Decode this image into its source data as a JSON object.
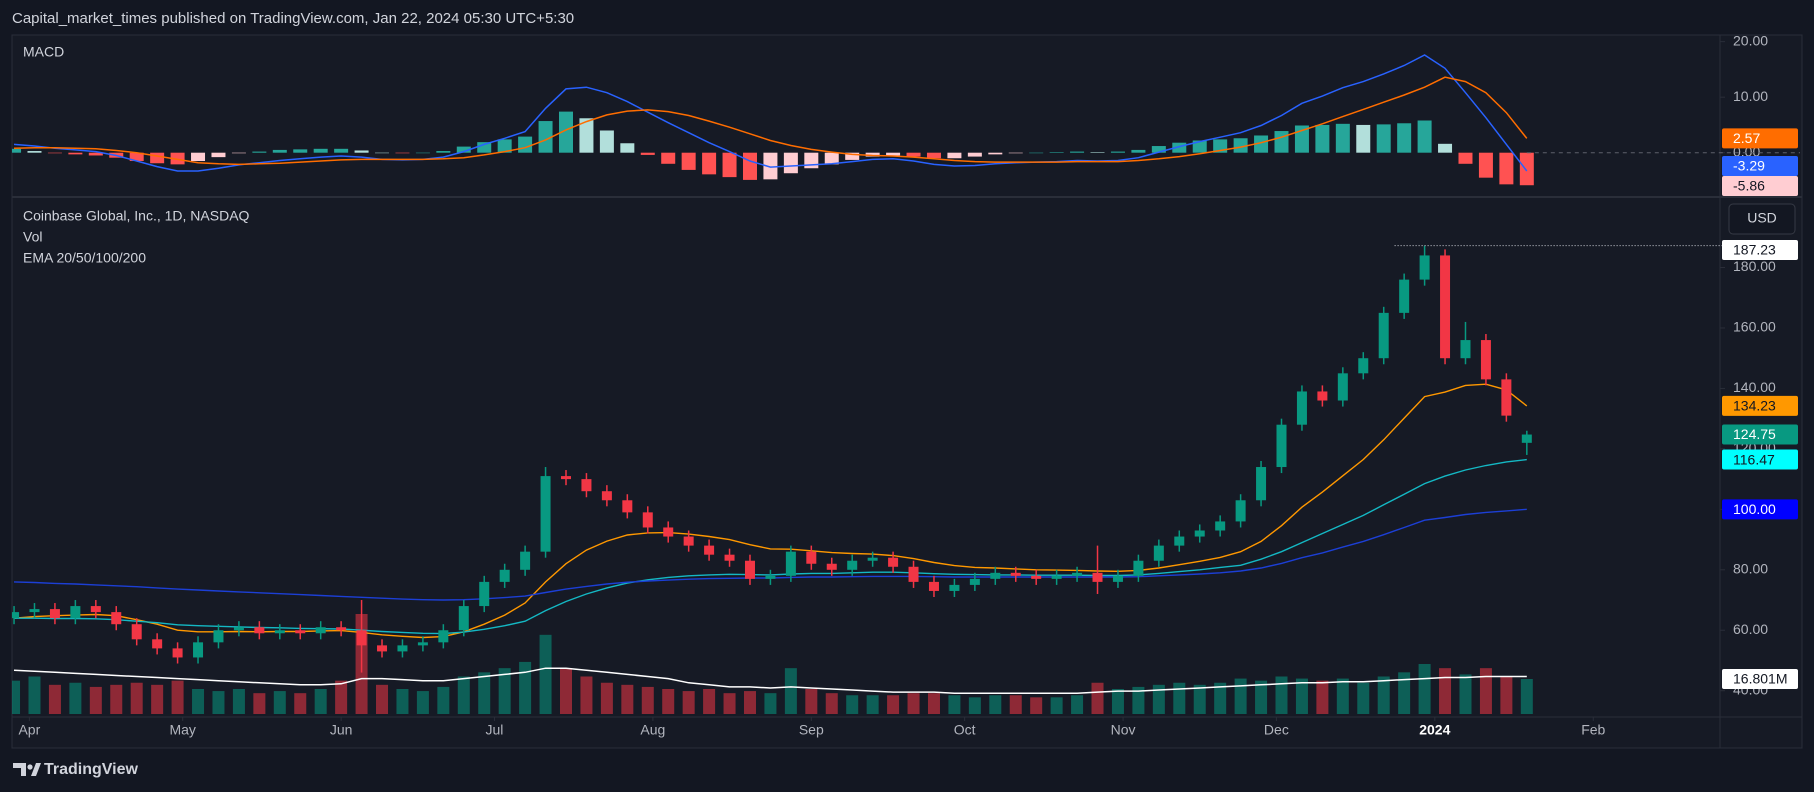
{
  "header": {
    "text": "Capital_market_times published on TradingView.com, Jan 22, 2024 05:30 UTC+5:30"
  },
  "footer": {
    "brand": "TradingView"
  },
  "chart_data": [
    {
      "type": "macd",
      "title": "MACD",
      "ylim": [
        -7.8,
        21.2
      ],
      "yticks": [
        {
          "value": 20,
          "label": "20.00"
        },
        {
          "value": 10,
          "label": "10.00"
        },
        {
          "value": 0,
          "label": "0.00"
        }
      ],
      "series": [
        {
          "color": "#2962ff",
          "last_label": "-3.29",
          "values": [
            1.5,
            1.2,
            0.8,
            0.5,
            0.2,
            -0.5,
            -1.5,
            -2.5,
            -3.3,
            -3.3,
            -2.8,
            -2.2,
            -1.8,
            -1.4,
            -1.1,
            -0.8,
            -0.6,
            -0.8,
            -1.2,
            -1.3,
            -1.2,
            -0.8,
            0.2,
            1.5,
            2.6,
            3.8,
            8,
            11.5,
            11.8,
            10.8,
            9.2,
            7.3,
            5.4,
            3.6,
            1.8,
            0.2,
            -1.5,
            -2.6,
            -2.4,
            -2.2,
            -2,
            -1.6,
            -1.2,
            -1.1,
            -1.5,
            -2.1,
            -2.4,
            -2.3,
            -2,
            -1.8,
            -1.7,
            -1.6,
            -1.4,
            -1.5,
            -1.4,
            -0.9,
            0.1,
            1.1,
            2,
            2.8,
            3.6,
            4.9,
            6.7,
            8.9,
            10.2,
            11.7,
            12.8,
            14.2,
            15.7,
            17.6,
            15.2,
            10.8,
            6.3,
            1.5,
            -3.29
          ]
        },
        {
          "color": "#ff6d00",
          "last_label": "2.57",
          "values": [
            0.8,
            0.9,
            0.9,
            0.8,
            0.7,
            0.4,
            0,
            -0.6,
            -1.2,
            -1.8,
            -2,
            -2.1,
            -2,
            -1.9,
            -1.7,
            -1.5,
            -1.3,
            -1.2,
            -1.2,
            -1.2,
            -1.2,
            -1.1,
            -0.9,
            -0.4,
            0.2,
            0.9,
            2.3,
            4.1,
            5.6,
            6.8,
            7.5,
            7.7,
            7.4,
            6.7,
            5.7,
            4.6,
            3.4,
            2.2,
            1.3,
            0.6,
            0.1,
            -0.3,
            -0.5,
            -0.6,
            -0.8,
            -1.1,
            -1.4,
            -1.6,
            -1.7,
            -1.7,
            -1.7,
            -1.7,
            -1.6,
            -1.6,
            -1.6,
            -1.4,
            -1.1,
            -0.7,
            -0.2,
            0.4,
            1,
            1.8,
            2.8,
            4,
            5.2,
            6.5,
            7.8,
            9.1,
            10.4,
            11.8,
            13.6,
            12.8,
            10.8,
            7.2,
            2.57
          ]
        }
      ],
      "histogram": {
        "last_label": "-5.86",
        "label_color": "#ffcdd2",
        "colors": {
          "grow_above": "#26a69a",
          "fall_above": "#b2dfdb",
          "grow_below": "#ffcdd2",
          "fall_below": "#ff5252"
        },
        "values": [
          0.7,
          0.3,
          -0.1,
          -0.3,
          -0.5,
          -0.9,
          -1.5,
          -1.9,
          -2.1,
          -1.5,
          -0.8,
          -0.1,
          0.2,
          0.5,
          0.6,
          0.7,
          0.7,
          0.4,
          0,
          -0.1,
          0,
          0.3,
          1.1,
          1.9,
          2.4,
          2.9,
          5.7,
          7.4,
          6.2,
          4,
          1.7,
          -0.4,
          -2,
          -3.1,
          -3.9,
          -4.4,
          -4.9,
          -4.8,
          -3.7,
          -2.8,
          -2.1,
          -1.3,
          -0.7,
          -0.5,
          -0.7,
          -1,
          -1,
          -0.7,
          -0.3,
          -0.1,
          0,
          0.1,
          0.2,
          0.1,
          0.2,
          0.5,
          1.2,
          1.8,
          2.2,
          2.4,
          2.6,
          3.1,
          3.9,
          4.9,
          5,
          5.2,
          5,
          5.1,
          5.3,
          5.8,
          1.6,
          -2,
          -4.5,
          -5.7,
          -5.86
        ]
      }
    },
    {
      "type": "candlestick",
      "title": "Coinbase Global, Inc., 1D, NASDAQ",
      "currency": "USD",
      "up_color": "#089981",
      "down_color": "#f23645",
      "close_label": "124.75",
      "high_label": "187.23",
      "xlim": [
        -3.4,
        330.8
      ],
      "xticks": [
        {
          "value": 0,
          "label": "Apr"
        },
        {
          "value": 30,
          "label": "May"
        },
        {
          "value": 61,
          "label": "Jun"
        },
        {
          "value": 91,
          "label": "Jul"
        },
        {
          "value": 122,
          "label": "Aug"
        },
        {
          "value": 153,
          "label": "Sep"
        },
        {
          "value": 183,
          "label": "Oct"
        },
        {
          "value": 214,
          "label": "Nov"
        },
        {
          "value": 244,
          "label": "Dec"
        },
        {
          "value": 275,
          "label": "2024"
        },
        {
          "value": 306,
          "label": "Feb"
        }
      ],
      "ylim": [
        31.3,
        203
      ],
      "yticks": [
        {
          "value": 40,
          "label": "40.00"
        },
        {
          "value": 60,
          "label": "60.00"
        },
        {
          "value": 80,
          "label": "80.00"
        },
        {
          "value": 100,
          "label": "100.00"
        },
        {
          "value": 120,
          "label": "120.00"
        },
        {
          "value": 140,
          "label": "140.00"
        },
        {
          "value": 160,
          "label": "160.00"
        },
        {
          "value": 180,
          "label": "180.00"
        }
      ],
      "x": [
        -3,
        1,
        5,
        9,
        13,
        17,
        21,
        25,
        29,
        33,
        37,
        41,
        45,
        49,
        53,
        57,
        61,
        65,
        69,
        73,
        77,
        81,
        85,
        89,
        93,
        97,
        101,
        105,
        109,
        113,
        117,
        121,
        125,
        129,
        133,
        137,
        141,
        145,
        149,
        153,
        157,
        161,
        165,
        169,
        173,
        177,
        181,
        185,
        189,
        193,
        197,
        201,
        205,
        209,
        213,
        217,
        221,
        225,
        229,
        233,
        237,
        241,
        245,
        249,
        253,
        257,
        261,
        265,
        269,
        273,
        277,
        281,
        285,
        289,
        293
      ],
      "open": [
        64,
        66,
        67,
        64,
        68,
        66,
        62,
        57,
        54,
        51,
        56,
        60,
        61,
        59,
        60,
        59,
        61,
        60,
        55,
        53,
        55,
        56,
        60,
        68,
        76,
        80,
        86,
        111,
        110,
        106,
        103,
        99,
        94,
        91,
        88,
        85,
        83,
        77,
        78,
        86,
        82,
        80,
        83,
        84,
        81,
        76,
        73,
        75,
        77,
        79,
        78,
        77,
        78,
        79,
        76,
        78,
        83,
        88,
        91,
        93,
        96,
        103,
        114,
        128,
        139,
        136,
        145,
        150,
        165,
        176,
        184,
        150,
        156,
        143,
        122
      ],
      "high": [
        68,
        69,
        69,
        70,
        70,
        68,
        64,
        59,
        56,
        58,
        62,
        63,
        63,
        62,
        62,
        63,
        63,
        70,
        57,
        57,
        58,
        62,
        70,
        78,
        82,
        88,
        114,
        113,
        112,
        108,
        105,
        101,
        96,
        93,
        90,
        87,
        85,
        80,
        88,
        88,
        84,
        85,
        86,
        86,
        83,
        78,
        77,
        79,
        81,
        81,
        80,
        80,
        81,
        88,
        80,
        85,
        90,
        93,
        95,
        98,
        105,
        116,
        130,
        141,
        141,
        147,
        152,
        167,
        178,
        187.23,
        186,
        162,
        158,
        145,
        126
      ],
      "low": [
        62,
        64,
        62,
        62,
        64,
        60,
        55,
        52,
        49,
        49,
        54,
        58,
        57,
        57,
        57,
        57,
        58,
        46,
        51,
        51,
        53,
        54,
        58,
        66,
        74,
        78,
        84,
        108,
        104,
        101,
        97,
        92,
        89,
        86,
        83,
        81,
        75,
        75,
        76,
        80,
        78,
        78,
        81,
        79,
        74,
        71,
        71,
        73,
        75,
        76,
        75,
        75,
        76,
        72,
        74,
        76,
        81,
        86,
        89,
        91,
        94,
        101,
        112,
        126,
        134,
        134,
        143,
        148,
        163,
        174,
        148,
        148,
        141,
        129,
        118
      ],
      "close": [
        66,
        67,
        64,
        68,
        66,
        62,
        57,
        54,
        51,
        56,
        60,
        61,
        59,
        60,
        59,
        61,
        60,
        55,
        53,
        55,
        56,
        60,
        68,
        76,
        80,
        86,
        111,
        110,
        106,
        103,
        99,
        94,
        91,
        88,
        85,
        83,
        77,
        78,
        86,
        82,
        80,
        83,
        84,
        81,
        76,
        73,
        75,
        77,
        79,
        78,
        77,
        78,
        79,
        76,
        78,
        83,
        88,
        91,
        93,
        96,
        103,
        114,
        128,
        139,
        136,
        145,
        150,
        165,
        176,
        184,
        150,
        156,
        143,
        131,
        124.75
      ],
      "volume": {
        "name": "Vol",
        "ylim": [
          0,
          60
        ],
        "last_label": "16.801M",
        "ma_color": "#ffffff",
        "values": [
          16,
          18,
          14,
          15,
          13,
          14,
          15,
          14,
          16,
          12,
          11,
          12,
          10,
          11,
          10,
          12,
          16,
          48,
          14,
          12,
          11,
          13,
          18,
          20,
          22,
          25,
          38,
          22,
          18,
          15,
          14,
          13,
          12,
          11,
          12,
          10,
          11,
          10,
          22,
          12,
          10,
          9,
          9,
          9,
          10,
          10,
          9,
          8,
          9,
          9,
          8,
          8,
          9,
          15,
          12,
          13,
          14,
          15,
          14,
          15,
          17,
          16,
          18,
          17,
          16,
          17,
          15,
          18,
          20,
          24,
          22,
          19,
          22,
          18,
          16.801
        ],
        "ma": [
          21,
          20.5,
          20,
          19.5,
          19,
          18.5,
          18,
          17.5,
          17,
          16.5,
          16,
          15.5,
          15,
          14.5,
          14,
          14,
          14.5,
          17,
          17,
          16.5,
          16,
          16,
          17,
          18,
          19,
          20,
          22,
          22,
          21,
          20,
          19,
          18,
          17,
          15,
          14,
          13,
          13,
          12.5,
          13,
          12.5,
          12,
          11.5,
          11,
          10.5,
          10.5,
          10.5,
          10,
          10,
          10,
          10,
          10,
          10,
          10,
          10.5,
          11,
          11,
          11.5,
          12,
          12.5,
          13,
          13.5,
          14,
          14.5,
          15,
          15,
          15.5,
          15.5,
          16,
          16.5,
          17,
          17.5,
          17.5,
          18,
          18,
          18
        ]
      },
      "ema": {
        "name": "EMA 20/50/100/200",
        "lines": [
          {
            "color": "#ff9800",
            "label_color": "#ff9800",
            "last_label": "134.23",
            "values": [
              64,
              64.5,
              64.8,
              65,
              65.2,
              64.8,
              63.5,
              62,
              60,
              59.5,
              59.5,
              59.6,
              59.5,
              59.6,
              59.6,
              59.8,
              59.9,
              59.3,
              58.5,
              58,
              57.6,
              57.9,
              59.5,
              62,
              65,
              69,
              76,
              82,
              86.5,
              89.5,
              91.5,
              92.2,
              92.3,
              91.8,
              91,
              90,
              88.3,
              86.9,
              86.8,
              86.3,
              85.7,
              85.4,
              85.2,
              84.7,
              83.7,
              82.4,
              81.4,
              80.8,
              80.6,
              80.3,
              80,
              79.9,
              79.8,
              79.6,
              79.5,
              79.8,
              80.6,
              81.7,
              82.8,
              84.1,
              86,
              89.4,
              94.6,
              100.7,
              105.7,
              111.1,
              116.5,
              123,
              130.2,
              137.3,
              138.8,
              141,
              141.4,
              139.5,
              134.23
            ]
          },
          {
            "color": "#14b8c4",
            "label_color": "#00ffff",
            "last_label": "116.47",
            "values": [
              64,
              64,
              63.9,
              63.9,
              63.8,
              63.5,
              63,
              62.5,
              61.8,
              61.5,
              61.3,
              61.1,
              60.9,
              60.8,
              60.6,
              60.5,
              60.4,
              60,
              59.6,
              59.3,
              59,
              58.9,
              59.4,
              60.3,
              61.5,
              63,
              66.5,
              69.5,
              72,
              74,
              75.6,
              76.7,
              77.5,
              78,
              78.3,
              78.5,
              78.4,
              78.3,
              78.6,
              78.8,
              78.8,
              79,
              79.2,
              79.2,
              79,
              78.7,
              78.5,
              78.4,
              78.3,
              78.3,
              78.2,
              78.2,
              78.2,
              78.1,
              78.1,
              78.3,
              78.8,
              79.4,
              80,
              80.8,
              81.5,
              83.5,
              86,
              89,
              92,
              95,
              98,
              101.5,
              105,
              108.5,
              111,
              113,
              114.5,
              115.7,
              116.47
            ]
          },
          {
            "color": "#1c3fd6",
            "label_color": "#0000ff",
            "last_label": "100.00",
            "values": [
              76,
              75.8,
              75.5,
              75.3,
              75,
              74.7,
              74.4,
              74,
              73.6,
              73.3,
              73,
              72.7,
              72.4,
              72.1,
              71.8,
              71.5,
              71.2,
              70.9,
              70.6,
              70.3,
              70.1,
              70,
              70.1,
              70.4,
              70.8,
              71.3,
              72.5,
              73.6,
              74.5,
              75.3,
              75.9,
              76.3,
              76.6,
              76.9,
              77.1,
              77.2,
              77.3,
              77.3,
              77.5,
              77.6,
              77.6,
              77.7,
              77.8,
              77.8,
              77.8,
              77.7,
              77.6,
              77.6,
              77.6,
              77.6,
              77.6,
              77.6,
              77.6,
              77.6,
              77.6,
              77.7,
              78,
              78.3,
              78.6,
              79,
              79.6,
              80.6,
              82.1,
              84,
              85.6,
              87.5,
              89.4,
              91.6,
              94,
              96.4,
              97.3,
              98.3,
              99,
              99.5,
              100
            ]
          }
        ]
      }
    }
  ]
}
